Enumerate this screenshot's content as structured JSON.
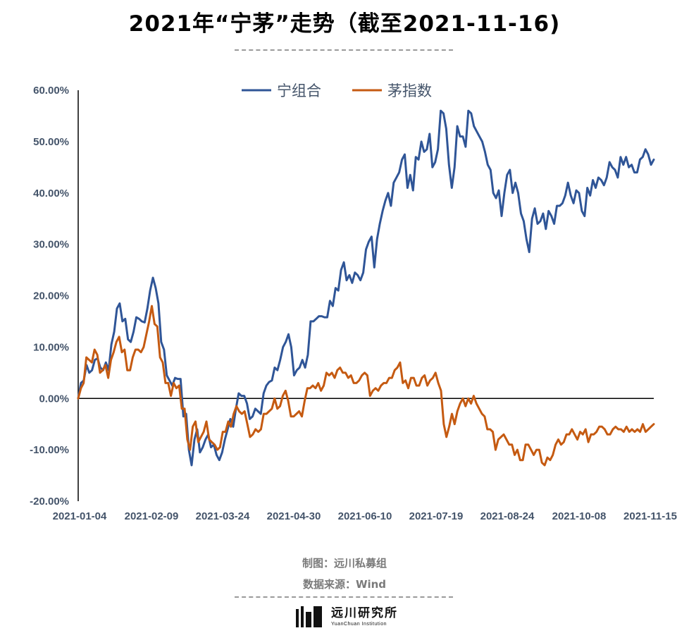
{
  "title": "2021年“宁茅”走势（截至2021-11-16)",
  "footer": {
    "author": "制图：远川私募组",
    "source": "数据来源：Wind",
    "logo_cn": "远川研究所",
    "logo_en": "YuanChuan Institution"
  },
  "chart_data": {
    "type": "line",
    "title": "2021年“宁茅”走势（截至2021-11-16)",
    "xlabel": "",
    "ylabel": "",
    "ylim": [
      -20,
      60
    ],
    "y_ticks": [
      -20,
      -10,
      0,
      10,
      20,
      30,
      40,
      50,
      60
    ],
    "y_tick_labels": [
      "-20.00%",
      "-10.00%",
      "0.00%",
      "10.00%",
      "20.00%",
      "30.00%",
      "40.00%",
      "50.00%",
      "60.00%"
    ],
    "x_tick_labels": [
      "2021-01-04",
      "2021-02-09",
      "2021-03-24",
      "2021-04-30",
      "2021-06-10",
      "2021-07-19",
      "2021-08-24",
      "2021-10-08",
      "2021-11-15"
    ],
    "legend_position": "top",
    "grid": false,
    "colors": {
      "宁组合": "#2f5597",
      "茅指数": "#c55a11",
      "zero_line": "#000000",
      "axis": "#000000"
    },
    "series": [
      {
        "name": "宁组合",
        "values": [
          0.0,
          3.0,
          3.5,
          6.5,
          5.0,
          5.5,
          7.5,
          7.8,
          6.0,
          5.5,
          7.0,
          5.5,
          10.5,
          13.0,
          17.5,
          18.5,
          15.0,
          15.5,
          11.5,
          11.0,
          13.0,
          15.8,
          15.5,
          15.0,
          14.8,
          17.5,
          21.0,
          23.5,
          21.5,
          18.5,
          11.0,
          9.5,
          4.5,
          3.5,
          2.5,
          4.0,
          3.8,
          3.8,
          -3.5,
          -3.0,
          -10.0,
          -13.0,
          -8.0,
          -6.0,
          -10.5,
          -9.5,
          -8.0,
          -7.0,
          -9.5,
          -9.0,
          -11.0,
          -12.0,
          -10.5,
          -8.0,
          -6.0,
          -4.0,
          -5.5,
          -2.0,
          1.0,
          0.5,
          0.5,
          -1.0,
          -4.0,
          -3.5,
          -2.0,
          -2.5,
          -3.0,
          1.0,
          2.5,
          3.2,
          3.5,
          6.0,
          5.5,
          7.5,
          10.0,
          11.0,
          12.5,
          10.0,
          4.5,
          5.5,
          6.0,
          7.5,
          6.0,
          8.5,
          15.0,
          15.0,
          15.5,
          16.0,
          16.0,
          15.8,
          15.8,
          19.0,
          18.0,
          21.5,
          21.0,
          25.0,
          26.5,
          23.0,
          24.0,
          22.5,
          24.5,
          24.0,
          23.0,
          24.5,
          29.0,
          30.5,
          31.5,
          25.5,
          31.0,
          34.0,
          36.5,
          38.5,
          40.0,
          37.5,
          42.0,
          43.0,
          44.0,
          46.5,
          47.5,
          41.0,
          43.5,
          40.5,
          47.0,
          46.5,
          50.0,
          48.0,
          48.5,
          51.5,
          45.0,
          46.0,
          48.5,
          56.0,
          55.5,
          52.5,
          45.5,
          41.0,
          45.0,
          53.0,
          51.0,
          51.0,
          49.0,
          56.0,
          55.5,
          53.0,
          52.0,
          51.0,
          50.0,
          48.0,
          45.5,
          44.5,
          40.0,
          39.0,
          40.5,
          35.5,
          40.0,
          43.5,
          44.5,
          40.0,
          42.0,
          40.0,
          36.0,
          34.5,
          31.0,
          28.5,
          35.0,
          37.0,
          34.0,
          34.5,
          36.0,
          33.0,
          36.5,
          35.5,
          34.0,
          37.5,
          37.5,
          38.0,
          39.5,
          42.0,
          39.5,
          38.0,
          40.5,
          40.0,
          36.5,
          35.5,
          41.0,
          39.5,
          42.5,
          41.0,
          43.0,
          42.5,
          41.5,
          43.0,
          46.0,
          45.0,
          44.5,
          43.0,
          47.0,
          45.5,
          47.0,
          45.0,
          45.5,
          44.0,
          44.0,
          46.5,
          47.0,
          48.5,
          47.5,
          45.5,
          46.5
        ]
      },
      {
        "name": "茅指数",
        "values": [
          0.0,
          2.0,
          3.0,
          8.0,
          7.5,
          7.0,
          9.5,
          8.5,
          5.0,
          5.5,
          6.5,
          4.0,
          7.5,
          9.0,
          11.0,
          12.0,
          9.0,
          9.5,
          5.5,
          5.5,
          8.0,
          9.5,
          9.5,
          9.0,
          10.0,
          12.5,
          15.0,
          18.0,
          14.5,
          14.0,
          8.0,
          7.0,
          3.0,
          3.0,
          0.5,
          3.0,
          2.0,
          2.5,
          -2.0,
          -2.0,
          -8.0,
          -10.0,
          -5.5,
          -4.5,
          -8.5,
          -7.5,
          -6.5,
          -4.5,
          -8.0,
          -8.5,
          -9.0,
          -10.0,
          -9.5,
          -6.5,
          -6.5,
          -4.5,
          -5.5,
          -3.0,
          -1.5,
          -2.5,
          -3.0,
          -2.5,
          -5.0,
          -7.5,
          -7.0,
          -6.0,
          -6.5,
          -6.0,
          -3.0,
          -3.0,
          -2.5,
          -2.0,
          0.0,
          -2.0,
          -1.5,
          0.5,
          1.5,
          -0.5,
          -3.5,
          -3.5,
          -3.0,
          -2.5,
          -3.5,
          -0.5,
          2.0,
          2.0,
          2.5,
          2.0,
          3.0,
          1.5,
          2.5,
          5.0,
          4.5,
          5.0,
          4.0,
          5.5,
          6.0,
          5.0,
          5.0,
          4.0,
          4.5,
          3.0,
          3.0,
          3.5,
          4.5,
          5.0,
          4.5,
          0.5,
          1.5,
          2.0,
          1.5,
          2.5,
          3.0,
          3.0,
          4.0,
          4.0,
          5.5,
          6.0,
          7.0,
          3.0,
          3.5,
          2.0,
          4.0,
          4.0,
          2.5,
          2.5,
          4.0,
          4.5,
          2.5,
          3.5,
          4.0,
          5.0,
          3.0,
          1.5,
          -5.0,
          -7.5,
          -5.5,
          -3.0,
          -5.0,
          -2.5,
          -1.0,
          0.0,
          -1.5,
          0.0,
          -1.0,
          0.5,
          -1.0,
          -2.0,
          -3.0,
          -3.5,
          -6.0,
          -6.0,
          -6.5,
          -10.0,
          -8.0,
          -7.5,
          -7.0,
          -8.0,
          -9.0,
          -9.0,
          -11.0,
          -10.0,
          -12.0,
          -12.0,
          -9.0,
          -9.0,
          -10.0,
          -11.0,
          -10.0,
          -10.0,
          -12.5,
          -13.0,
          -11.5,
          -12.0,
          -11.0,
          -9.0,
          -8.0,
          -9.0,
          -8.5,
          -7.0,
          -7.0,
          -6.0,
          -7.0,
          -8.0,
          -6.5,
          -7.0,
          -6.0,
          -8.5,
          -7.0,
          -7.0,
          -6.5,
          -5.5,
          -5.5,
          -6.0,
          -7.0,
          -7.0,
          -6.0,
          -5.5,
          -6.0,
          -6.0,
          -6.5,
          -5.5,
          -6.5,
          -6.0,
          -6.5,
          -6.0,
          -6.5,
          -5.0,
          -6.5,
          -6.0,
          -5.5,
          -5.0
        ]
      }
    ]
  }
}
